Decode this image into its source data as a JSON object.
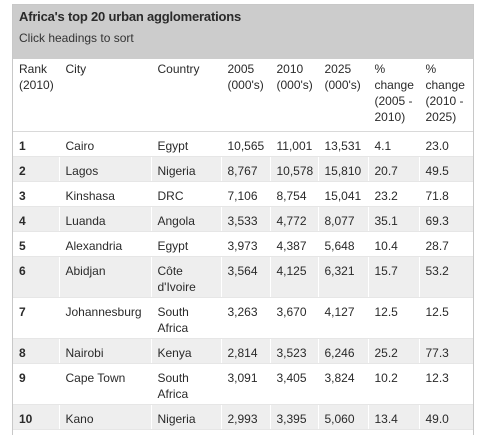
{
  "header": {
    "title": "Africa's top 20 urban agglomerations",
    "subtitle": "Click headings to sort"
  },
  "columns": [
    "Rank (2010)",
    "City",
    "Country",
    "2005 (000's)",
    "2010 (000's)",
    "2025 (000's)",
    "% change (2005 - 2010)",
    "% change (2010 - 2025)"
  ],
  "rows": [
    {
      "rank": "1",
      "city": "Cairo",
      "country": "Egypt",
      "y2005": "10,565",
      "y2010": "11,001",
      "y2025": "13,531",
      "chg_05_10": "4.1",
      "chg_10_25": "23.0"
    },
    {
      "rank": "2",
      "city": "Lagos",
      "country": "Nigeria",
      "y2005": "8,767",
      "y2010": "10,578",
      "y2025": "15,810",
      "chg_05_10": "20.7",
      "chg_10_25": "49.5"
    },
    {
      "rank": "3",
      "city": "Kinshasa",
      "country": "DRC",
      "y2005": "7,106",
      "y2010": "8,754",
      "y2025": "15,041",
      "chg_05_10": "23.2",
      "chg_10_25": "71.8"
    },
    {
      "rank": "4",
      "city": "Luanda",
      "country": "Angola",
      "y2005": "3,533",
      "y2010": "4,772",
      "y2025": "8,077",
      "chg_05_10": "35.1",
      "chg_10_25": "69.3"
    },
    {
      "rank": "5",
      "city": "Alexandria",
      "country": "Egypt",
      "y2005": "3,973",
      "y2010": "4,387",
      "y2025": "5,648",
      "chg_05_10": "10.4",
      "chg_10_25": "28.7"
    },
    {
      "rank": "6",
      "city": "Abidjan",
      "country": "Côte d'Ivoire",
      "y2005": "3,564",
      "y2010": "4,125",
      "y2025": "6,321",
      "chg_05_10": "15.7",
      "chg_10_25": "53.2"
    },
    {
      "rank": "7",
      "city": "Johannesburg",
      "country": "South Africa",
      "y2005": "3,263",
      "y2010": "3,670",
      "y2025": "4,127",
      "chg_05_10": "12.5",
      "chg_10_25": "12.5"
    },
    {
      "rank": "8",
      "city": "Nairobi",
      "country": "Kenya",
      "y2005": "2,814",
      "y2010": "3,523",
      "y2025": "6,246",
      "chg_05_10": "25.2",
      "chg_10_25": "77.3"
    },
    {
      "rank": "9",
      "city": "Cape Town",
      "country": "South Africa",
      "y2005": "3,091",
      "y2010": "3,405",
      "y2025": "3,824",
      "chg_05_10": "10.2",
      "chg_10_25": "12.3"
    },
    {
      "rank": "10",
      "city": "Kano",
      "country": "Nigeria",
      "y2005": "2,993",
      "y2010": "3,395",
      "y2025": "5,060",
      "chg_05_10": "13.4",
      "chg_10_25": "49.0"
    }
  ]
}
